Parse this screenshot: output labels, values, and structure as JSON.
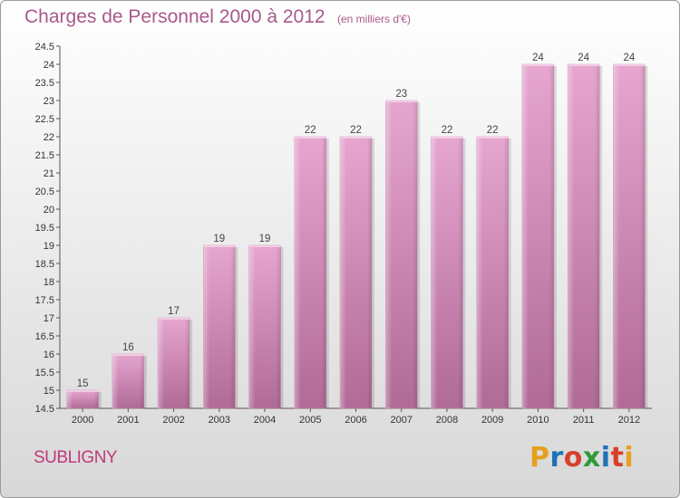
{
  "header": {
    "title": "Charges de Personnel 2000 à 2012",
    "subtitle": "(en milliers d'€)"
  },
  "footer": {
    "commune": "SUBLIGNY",
    "logo": {
      "text": "Proxiti",
      "letters": [
        {
          "char": "P",
          "color": "#e6a020"
        },
        {
          "char": "r",
          "color": "#1e73b8"
        },
        {
          "char": "o",
          "color": "#d8402c"
        },
        {
          "char": "x",
          "color": "#2f9a3a"
        },
        {
          "char": "i",
          "color": "#1e73b8"
        },
        {
          "char": "t",
          "color": "#d8402c"
        },
        {
          "char": "i",
          "color": "#e6a020"
        }
      ]
    }
  },
  "chart_data": {
    "type": "bar",
    "title": "Charges de Personnel 2000 à 2012",
    "subtitle": "(en milliers d'€)",
    "categories": [
      "2000",
      "2001",
      "2002",
      "2003",
      "2004",
      "2005",
      "2006",
      "2007",
      "2008",
      "2009",
      "2010",
      "2011",
      "2012"
    ],
    "values": [
      15,
      16,
      17,
      19,
      19,
      22,
      22,
      23,
      22,
      22,
      24,
      24,
      24
    ],
    "value_labels": [
      "15",
      "16",
      "17",
      "19",
      "19",
      "22",
      "22",
      "23",
      "22",
      "22",
      "24",
      "24",
      "24"
    ],
    "ylim": [
      14.5,
      24.5
    ],
    "yticks": [
      14.5,
      15,
      15.5,
      16,
      16.5,
      17,
      17.5,
      18,
      18.5,
      19,
      19.5,
      20,
      20.5,
      21,
      21.5,
      22,
      22.5,
      23,
      23.5,
      24,
      24.5
    ],
    "ytick_labels": [
      "14.5",
      "15",
      "15.5",
      "16",
      "16.5",
      "17",
      "17.5",
      "18",
      "18.5",
      "19",
      "19.5",
      "20",
      "20.5",
      "21",
      "21.5",
      "22",
      "22.5",
      "23",
      "23.5",
      "24",
      "24.5"
    ],
    "bar_color": "#d98fbd",
    "grid": false,
    "legend": "none"
  }
}
